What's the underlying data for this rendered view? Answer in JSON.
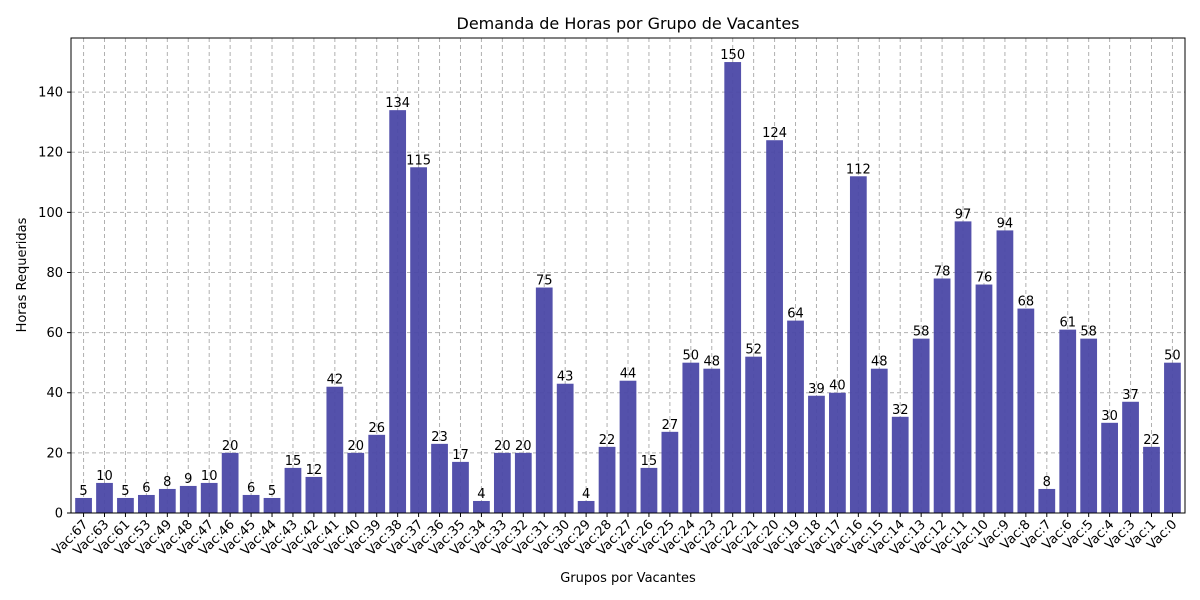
{
  "chart_data": {
    "type": "bar",
    "title": "Demanda de Horas por Grupo de Vacantes",
    "xlabel": "Grupos por Vacantes",
    "ylabel": "Horas Requeridas",
    "ylim": [
      0,
      158
    ],
    "yticks": [
      0,
      20,
      40,
      60,
      80,
      100,
      120,
      140
    ],
    "grid": true,
    "bar_color": "#4b48a6",
    "categories": [
      "Vac:67",
      "Vac:63",
      "Vac:61",
      "Vac:53",
      "Vac:49",
      "Vac:48",
      "Vac:47",
      "Vac:46",
      "Vac:45",
      "Vac:44",
      "Vac:43",
      "Vac:42",
      "Vac:41",
      "Vac:40",
      "Vac:39",
      "Vac:38",
      "Vac:37",
      "Vac:36",
      "Vac:35",
      "Vac:34",
      "Vac:33",
      "Vac:32",
      "Vac:31",
      "Vac:30",
      "Vac:29",
      "Vac:28",
      "Vac:27",
      "Vac:26",
      "Vac:25",
      "Vac:24",
      "Vac:23",
      "Vac:22",
      "Vac:21",
      "Vac:20",
      "Vac:19",
      "Vac:18",
      "Vac:17",
      "Vac:16",
      "Vac:15",
      "Vac:14",
      "Vac:13",
      "Vac:12",
      "Vac:11",
      "Vac:10",
      "Vac:9",
      "Vac:8",
      "Vac:7",
      "Vac:6",
      "Vac:5",
      "Vac:4",
      "Vac:3",
      "Vac:1",
      "Vac:0"
    ],
    "values": [
      5,
      10,
      5,
      6,
      8,
      9,
      10,
      20,
      6,
      5,
      15,
      12,
      42,
      20,
      26,
      134,
      115,
      23,
      17,
      4,
      20,
      20,
      75,
      43,
      4,
      22,
      44,
      15,
      27,
      50,
      48,
      150,
      52,
      124,
      64,
      39,
      40,
      112,
      48,
      32,
      58,
      78,
      97,
      76,
      94,
      68,
      8,
      61,
      58,
      30,
      37,
      22,
      50
    ]
  }
}
